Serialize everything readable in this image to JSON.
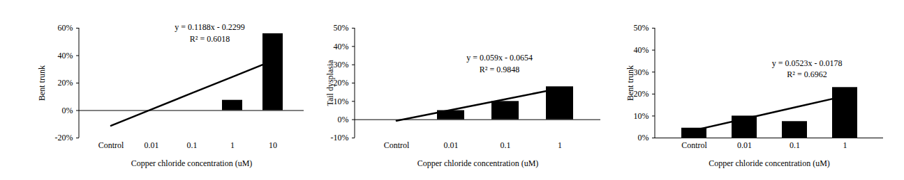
{
  "chart_data": [
    {
      "type": "bar",
      "x_label": "Copper chloride concentration (uM)",
      "y_label": "Bent trunk",
      "categories": [
        "Control",
        "0.01",
        "0.1",
        "1",
        "10"
      ],
      "series": [
        {
          "type": "bar",
          "color": "#000000",
          "values": [
            0,
            0,
            0,
            7.5,
            56
          ]
        },
        {
          "type": "line",
          "color": "#000000",
          "values": [
            -11.1,
            0.8,
            12.7,
            24.5,
            36.4
          ]
        }
      ],
      "annotations": [
        "y = 0.1188x - 0.2299",
        "R² = 0.6018"
      ],
      "ylim": [
        -20,
        60
      ],
      "yticks": [
        {
          "value": -20,
          "label": "-20%"
        },
        {
          "value": 0,
          "label": "0%"
        },
        {
          "value": 20,
          "label": "20%"
        },
        {
          "value": 40,
          "label": "40%"
        },
        {
          "value": 60,
          "label": "60%"
        }
      ],
      "grid": false
    },
    {
      "type": "bar",
      "x_label": "Copper chloride concentration (uM)",
      "y_label": "Tail dysplasia",
      "categories": [
        "Control",
        "0.01",
        "0.1",
        "1"
      ],
      "series": [
        {
          "type": "bar",
          "color": "#000000",
          "values": [
            0,
            5,
            10,
            18
          ]
        },
        {
          "type": "line",
          "color": "#000000",
          "values": [
            -0.6,
            5.3,
            11.2,
            17.1
          ]
        }
      ],
      "annotations": [
        "y = 0.059x - 0.0654",
        "R² = 0.9848"
      ],
      "ylim": [
        -10,
        50
      ],
      "yticks": [
        {
          "value": -10,
          "label": "-10%"
        },
        {
          "value": 0,
          "label": "0%"
        },
        {
          "value": 10,
          "label": "10%"
        },
        {
          "value": 20,
          "label": "20%"
        },
        {
          "value": 30,
          "label": "30%"
        },
        {
          "value": 40,
          "label": "40%"
        },
        {
          "value": 50,
          "label": "50%"
        }
      ],
      "grid": false
    },
    {
      "type": "bar",
      "x_label": "Copper chloride concentration (uM)",
      "y_label": "Bent trunk",
      "categories": [
        "Control",
        "0.01",
        "0.1",
        "1"
      ],
      "series": [
        {
          "type": "bar",
          "color": "#000000",
          "values": [
            4.5,
            10,
            7.5,
            23
          ]
        },
        {
          "type": "line",
          "color": "#000000",
          "values": [
            3.5,
            8.7,
            13.9,
            19.1
          ]
        }
      ],
      "annotations": [
        "y = 0.0523x - 0.0178",
        "R² = 0.6962"
      ],
      "ylim": [
        0,
        50
      ],
      "yticks": [
        {
          "value": 0,
          "label": "0%"
        },
        {
          "value": 10,
          "label": "10%"
        },
        {
          "value": 20,
          "label": "20%"
        },
        {
          "value": 30,
          "label": "30%"
        },
        {
          "value": 40,
          "label": "40%"
        },
        {
          "value": 50,
          "label": "50%"
        }
      ],
      "grid": false
    }
  ]
}
